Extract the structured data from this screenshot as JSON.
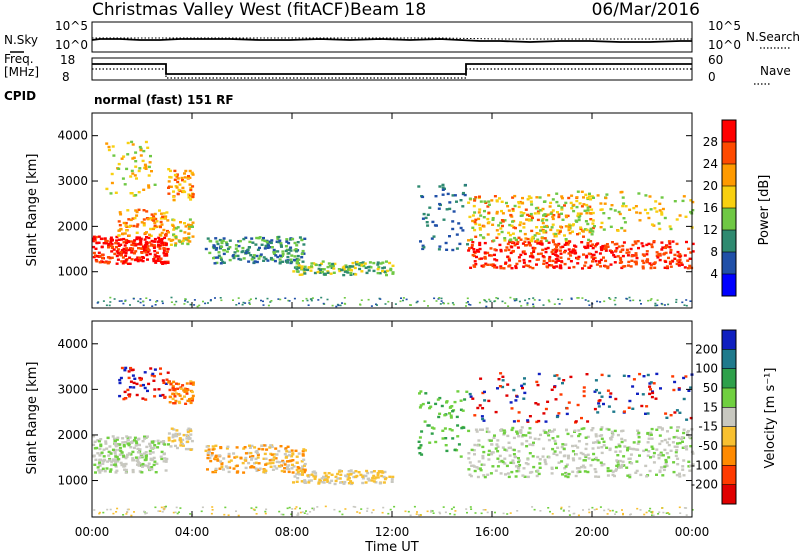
{
  "title": {
    "station": "Christmas Valley West (fitACF)",
    "beam": "Beam 18",
    "date": "06/Mar/2016"
  },
  "strip_panels": {
    "nsky": {
      "label": "N.Sky",
      "ticks": [
        "10^5",
        "10^0"
      ]
    },
    "nsearch": {
      "label": "N.Search",
      "ticks": [
        "10^5",
        "10^0"
      ]
    },
    "freq": {
      "label_line1": "Freq.",
      "label_line2": "[MHz]",
      "ticks": [
        "18",
        "8"
      ]
    },
    "nave": {
      "label": "Nave",
      "ticks": [
        "60",
        "0"
      ]
    },
    "cpid": {
      "label": "CPID",
      "text": "normal (fast) 151 RF"
    }
  },
  "chart_data": [
    {
      "type": "heatmap",
      "name": "power",
      "ylabel": "Slant Range [km]",
      "ylim": [
        200,
        4500
      ],
      "yticks": [
        "4000",
        "3000",
        "2000",
        "1000"
      ],
      "colorbar": {
        "label": "Power [dB]",
        "ticks": [
          "28",
          "24",
          "20",
          "16",
          "12",
          "8",
          "4"
        ],
        "colors": [
          "#ff0000",
          "#ff4a00",
          "#ff9a00",
          "#f8d010",
          "#6fc844",
          "#2f8a70",
          "#2050a8",
          "#0000ff"
        ]
      }
    },
    {
      "type": "heatmap",
      "name": "velocity",
      "ylabel": "Slant Range [km]",
      "ylim": [
        200,
        4500
      ],
      "yticks": [
        "4000",
        "3000",
        "2000",
        "1000"
      ],
      "xlabel": "Time UT",
      "xticks": [
        "00:00",
        "04:00",
        "08:00",
        "12:00",
        "16:00",
        "20:00",
        "00:00"
      ],
      "colorbar": {
        "label": "Velocity [m s⁻¹]",
        "ticks": [
          "200",
          "100",
          "50",
          "15",
          "-15",
          "-50",
          "-100",
          "-200"
        ],
        "colors": [
          "#1020c0",
          "#1f7a8c",
          "#2ea04a",
          "#70d040",
          "#c8c8c0",
          "#f8c030",
          "#ff8a00",
          "#ff3a00",
          "#e00000"
        ]
      }
    }
  ]
}
